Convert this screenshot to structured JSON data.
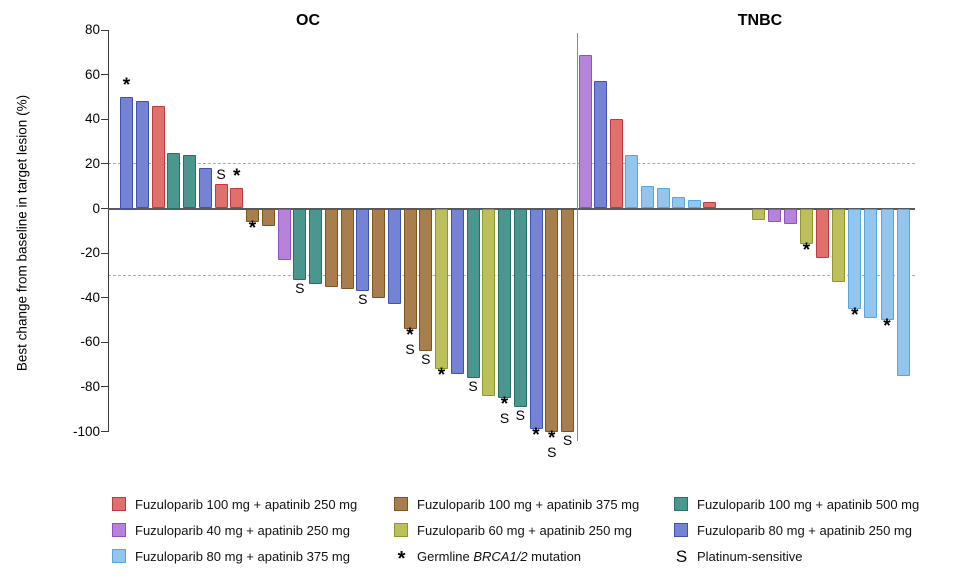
{
  "chart_data": {
    "type": "bar",
    "variant": "waterfall",
    "title": "",
    "ylabel": "Best change from baseline in target lesion (%)",
    "ylim": [
      -100,
      80
    ],
    "yticks": [
      80,
      60,
      40,
      20,
      0,
      -20,
      -40,
      -60,
      -80,
      -100
    ],
    "reference_lines_pct": [
      20,
      -30
    ],
    "grid": "off",
    "colors": {
      "red": {
        "fill": "#E0706E",
        "edge": "#C0393E",
        "label": "Fuzuloparib 100 mg + apatinib 250 mg"
      },
      "purple": {
        "fill": "#B583D9",
        "edge": "#9350C4",
        "label": "Fuzuloparib 40 mg + apatinib 250 mg"
      },
      "lightblue": {
        "fill": "#92C6EE",
        "edge": "#57A4DF",
        "label": "Fuzuloparib 80 mg + apatinib 375 mg"
      },
      "brown": {
        "fill": "#A87E4D",
        "edge": "#7B5420",
        "label": "Fuzuloparib 100 mg + apatinib 375 mg"
      },
      "olive": {
        "fill": "#BCC05C",
        "edge": "#8E9729",
        "label": "Fuzuloparib 60 mg + apatinib 250 mg"
      },
      "teal": {
        "fill": "#4A978F",
        "edge": "#2C6E67",
        "label": "Fuzuloparib 100 mg + apatinib 500 mg"
      },
      "blue": {
        "fill": "#7483D4",
        "edge": "#4050B3",
        "label": "Fuzuloparib 80 mg + apatinib 250 mg"
      }
    },
    "panels": [
      {
        "title": "OC",
        "bars": [
          {
            "color": "blue",
            "value": 50,
            "mark": "*"
          },
          {
            "color": "blue",
            "value": 48,
            "mark": ""
          },
          {
            "color": "red",
            "value": 46,
            "mark": ""
          },
          {
            "color": "teal",
            "value": 25,
            "mark": ""
          },
          {
            "color": "teal",
            "value": 24,
            "mark": ""
          },
          {
            "color": "blue",
            "value": 18,
            "mark": ""
          },
          {
            "color": "red",
            "value": 11,
            "mark": "S"
          },
          {
            "color": "red",
            "value": 9,
            "mark": "*"
          },
          {
            "color": "brown",
            "value": -6,
            "mark": "*"
          },
          {
            "color": "brown",
            "value": -8,
            "mark": ""
          },
          {
            "color": "purple",
            "value": -23,
            "mark": ""
          },
          {
            "color": "teal",
            "value": -32,
            "mark": "S"
          },
          {
            "color": "teal",
            "value": -34,
            "mark": ""
          },
          {
            "color": "brown",
            "value": -35,
            "mark": ""
          },
          {
            "color": "brown",
            "value": -36,
            "mark": ""
          },
          {
            "color": "blue",
            "value": -37,
            "mark": "S"
          },
          {
            "color": "brown",
            "value": -40,
            "mark": ""
          },
          {
            "color": "blue",
            "value": -43,
            "mark": ""
          },
          {
            "color": "brown",
            "value": -54,
            "mark": "*S"
          },
          {
            "color": "brown",
            "value": -64,
            "mark": "S"
          },
          {
            "color": "olive",
            "value": -72,
            "mark": "*"
          },
          {
            "color": "blue",
            "value": -74,
            "mark": ""
          },
          {
            "color": "teal",
            "value": -76,
            "mark": "S"
          },
          {
            "color": "olive",
            "value": -84,
            "mark": ""
          },
          {
            "color": "teal",
            "value": -85,
            "mark": "*S"
          },
          {
            "color": "teal",
            "value": -89,
            "mark": "S"
          },
          {
            "color": "blue",
            "value": -99,
            "mark": "*"
          },
          {
            "color": "brown",
            "value": -100,
            "mark": "*S"
          },
          {
            "color": "brown",
            "value": -100,
            "mark": "S"
          }
        ]
      },
      {
        "title": "TNBC",
        "bars": [
          {
            "color": "purple",
            "value": 69,
            "mark": ""
          },
          {
            "color": "blue",
            "value": 57,
            "mark": ""
          },
          {
            "color": "red",
            "value": 40,
            "mark": ""
          },
          {
            "color": "lightblue",
            "value": 24,
            "mark": ""
          },
          {
            "color": "lightblue",
            "value": 10,
            "mark": ""
          },
          {
            "color": "lightblue",
            "value": 9,
            "mark": ""
          },
          {
            "color": "lightblue",
            "value": 5,
            "mark": ""
          },
          {
            "color": "lightblue",
            "value": 4,
            "mark": ""
          },
          {
            "color": "red",
            "value": 3,
            "mark": ""
          },
          {
            "color": "olive",
            "value": -5,
            "mark": ""
          },
          {
            "color": "purple",
            "value": -6,
            "mark": ""
          },
          {
            "color": "purple",
            "value": -7,
            "mark": ""
          },
          {
            "color": "olive",
            "value": -16,
            "mark": "*"
          },
          {
            "color": "red",
            "value": -22,
            "mark": ""
          },
          {
            "color": "olive",
            "value": -33,
            "mark": ""
          },
          {
            "color": "lightblue",
            "value": -45,
            "mark": "*"
          },
          {
            "color": "lightblue",
            "value": -49,
            "mark": ""
          },
          {
            "color": "lightblue",
            "value": -50,
            "mark": "*"
          },
          {
            "color": "lightblue",
            "value": -75,
            "mark": ""
          }
        ]
      }
    ],
    "markers": {
      "asterisk_symbol": "*",
      "asterisk_label_pre": "Germline ",
      "asterisk_label_italic": "BRCA1/2",
      "asterisk_label_post": " mutation",
      "s_symbol": "S",
      "s_label": "Platinum-sensitive"
    },
    "legend_columns": [
      [
        "red",
        "purple",
        "lightblue"
      ],
      [
        "brown",
        "olive",
        "*"
      ],
      [
        "teal",
        "blue",
        "S"
      ]
    ],
    "legend_position": "bottom"
  }
}
